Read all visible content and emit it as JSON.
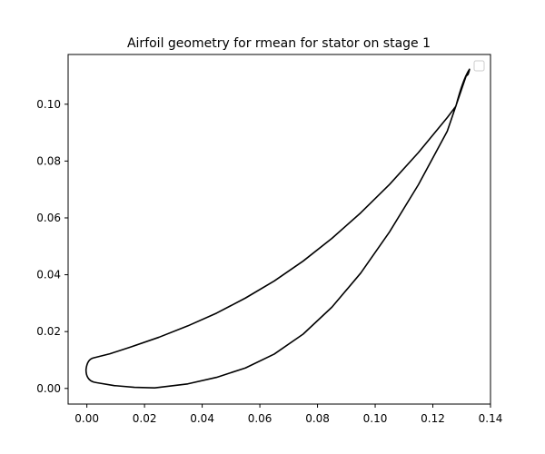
{
  "chart_data": {
    "type": "line",
    "title": "Airfoil geometry for rmean for stator on stage 1",
    "xlabel": "",
    "ylabel": "",
    "xlim": [
      -0.0065,
      0.14
    ],
    "ylim": [
      -0.0055,
      0.1175
    ],
    "xticks": [
      0.0,
      0.02,
      0.04,
      0.06,
      0.08,
      0.1,
      0.12,
      0.14
    ],
    "yticks": [
      0.0,
      0.02,
      0.04,
      0.06,
      0.08,
      0.1
    ],
    "xtick_labels": [
      "0.00",
      "0.02",
      "0.04",
      "0.06",
      "0.08",
      "0.10",
      "0.12",
      "0.14"
    ],
    "ytick_labels": [
      "0.00",
      "0.02",
      "0.04",
      "0.06",
      "0.08",
      "0.10"
    ],
    "grid": false,
    "legend": {
      "placement": "top-right",
      "entries": []
    },
    "series": [
      {
        "color": "#000000",
        "x": [
          0.0025,
          0.008,
          0.015,
          0.025,
          0.035,
          0.045,
          0.055,
          0.065,
          0.075,
          0.085,
          0.095,
          0.105,
          0.115,
          0.125,
          0.128,
          0.1305,
          0.132,
          0.1325
        ],
        "y": [
          0.0108,
          0.0122,
          0.0145,
          0.018,
          0.022,
          0.0265,
          0.0318,
          0.0378,
          0.0448,
          0.0528,
          0.0618,
          0.0718,
          0.083,
          0.0953,
          0.0993,
          0.1018,
          0.1023,
          0.1108
        ]
      },
      {
        "color": "#000000",
        "x": [
          0.0025,
          0.0035,
          0.0095,
          0.0165,
          0.0235,
          0.035,
          0.045,
          0.055,
          0.065,
          0.075,
          0.085,
          0.095,
          0.105,
          0.115,
          0.125,
          0.1315
        ],
        "y": [
          0.0022,
          0.002,
          0.001,
          0.0004,
          0.0002,
          0.0016,
          0.0039,
          0.0072,
          0.0121,
          0.0191,
          0.0286,
          0.0406,
          0.0551,
          0.0717,
          0.0905,
          0.1098
        ]
      }
    ]
  }
}
